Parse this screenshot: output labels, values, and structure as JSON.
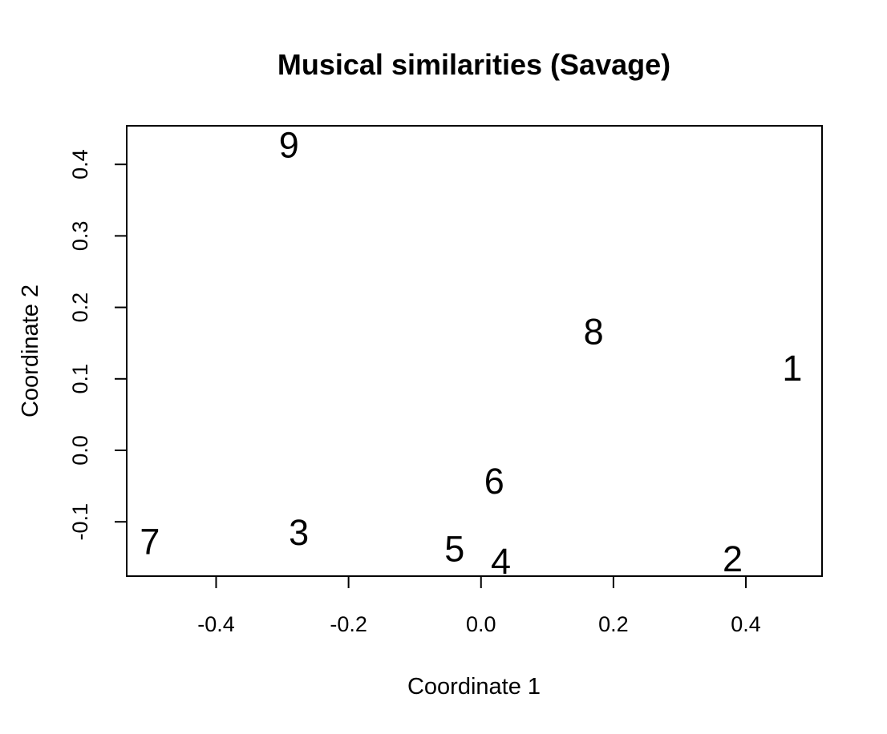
{
  "chart_data": {
    "type": "scatter",
    "title": "Musical similarities (Savage)",
    "xlabel": "Coordinate 1",
    "ylabel": "Coordinate 2",
    "xlim": [
      -0.535,
      0.515
    ],
    "ylim": [
      -0.176,
      0.454
    ],
    "xticks": [
      -0.4,
      -0.2,
      0.0,
      0.2,
      0.4
    ],
    "xtick_labels": [
      "-0.4",
      "-0.2",
      "0.0",
      "0.2",
      "0.4"
    ],
    "yticks": [
      -0.1,
      0.0,
      0.1,
      0.2,
      0.3,
      0.4
    ],
    "ytick_labels": [
      "-0.1",
      "0.0",
      "0.1",
      "0.2",
      "0.3",
      "0.4"
    ],
    "grid": false,
    "legend": "none",
    "marker": "text-labels",
    "points": [
      {
        "label": "1",
        "x": 0.47,
        "y": 0.115
      },
      {
        "label": "2",
        "x": 0.38,
        "y": -0.152
      },
      {
        "label": "3",
        "x": -0.275,
        "y": -0.115
      },
      {
        "label": "4",
        "x": 0.03,
        "y": -0.155
      },
      {
        "label": "5",
        "x": -0.04,
        "y": -0.138
      },
      {
        "label": "6",
        "x": 0.02,
        "y": -0.043
      },
      {
        "label": "7",
        "x": -0.5,
        "y": -0.128
      },
      {
        "label": "8",
        "x": 0.17,
        "y": 0.166
      },
      {
        "label": "9",
        "x": -0.29,
        "y": 0.427
      }
    ]
  }
}
